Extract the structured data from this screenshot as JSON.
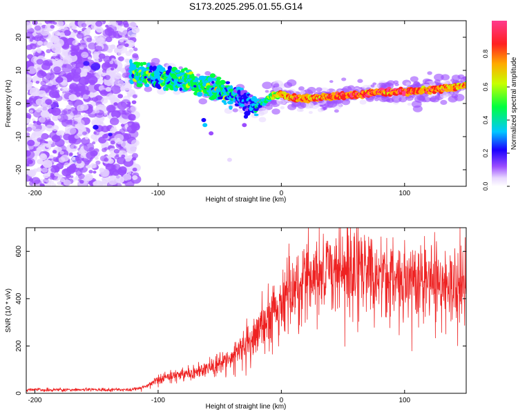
{
  "title": "S173.2025.295.01.55.G14",
  "chart_data": [
    {
      "type": "heatmap",
      "name": "spectrogram",
      "xlabel": "Height of straight line (km)",
      "ylabel": "Frequency (Hz)",
      "xlim": [
        -207,
        150
      ],
      "ylim": [
        -25,
        25
      ],
      "xticks": [
        -200,
        -100,
        0,
        100
      ],
      "yticks": [
        -20,
        -10,
        0,
        10,
        20
      ],
      "colorbar": {
        "label": "Normalized spectral amplitude",
        "range": [
          0,
          1
        ],
        "ticks": [
          0.0,
          0.2,
          0.4,
          0.6,
          0.8
        ],
        "tick_labels": [
          "0.0",
          "0.2",
          "0.4",
          "0.6",
          "0.8"
        ],
        "colors": [
          "#e8d8ff",
          "#9b4dff",
          "#1a00ff",
          "#00c8ff",
          "#00ff40",
          "#c8ff00",
          "#ffaa00",
          "#ff2020",
          "#ff3b8d"
        ]
      },
      "ridge": {
        "height_km": [
          -122,
          -100,
          -80,
          -60,
          -45,
          -35,
          -28,
          -22,
          -15,
          -8,
          0,
          10,
          30,
          60,
          80,
          100,
          120,
          140,
          150
        ],
        "frequency_hz": [
          9,
          8,
          7,
          5,
          3,
          2,
          0,
          -1.5,
          0.5,
          2,
          3,
          1.5,
          1.8,
          2.5,
          3.5,
          3.5,
          4,
          5,
          5.5
        ],
        "amplitude": [
          0.45,
          0.4,
          0.45,
          0.45,
          0.4,
          0.3,
          0.2,
          0.35,
          0.4,
          0.5,
          0.7,
          0.75,
          0.8,
          0.85,
          0.85,
          0.85,
          0.8,
          0.75,
          0.75
        ]
      },
      "noise_region_km": [
        -207,
        -122
      ]
    },
    {
      "type": "line",
      "name": "snr",
      "xlabel": "Height of straight line (km)",
      "ylabel": "SNR (10 * v/v)",
      "xlim": [
        -207,
        150
      ],
      "ylim": [
        0,
        700
      ],
      "xticks": [
        -200,
        -100,
        0,
        100
      ],
      "yticks": [
        0,
        200,
        400,
        600
      ],
      "color": "#ee2222",
      "envelope": {
        "height_km": [
          -207,
          -120,
          -110,
          -100,
          -80,
          -60,
          -40,
          -20,
          -10,
          0,
          10,
          20,
          30,
          50,
          70,
          100,
          130,
          150
        ],
        "snr": [
          15,
          15,
          30,
          60,
          80,
          100,
          150,
          250,
          320,
          380,
          420,
          470,
          520,
          530,
          510,
          480,
          470,
          460
        ]
      }
    }
  ]
}
